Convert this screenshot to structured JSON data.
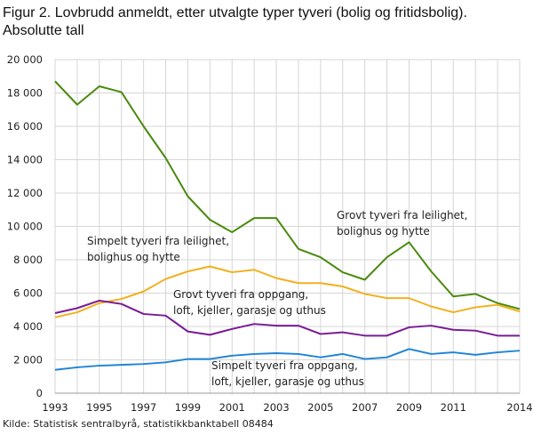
{
  "title_line1": "Figur 2. Lovbrudd anmeldt, etter utvalgte typer tyveri (bolig og fritidsbolig).",
  "title_line2": "Absolutte tall",
  "source": "Kilde: Statistisk sentralbyrå, statistikkbanktabell 08484",
  "chart_data": {
    "type": "line",
    "title": "Figur 2. Lovbrudd anmeldt, etter utvalgte typer tyveri (bolig og fritidsbolig). Absolutte tall",
    "xlabel": "",
    "ylabel": "",
    "x": [
      1993,
      1994,
      1995,
      1996,
      1997,
      1998,
      1999,
      2000,
      2001,
      2002,
      2003,
      2004,
      2005,
      2006,
      2007,
      2008,
      2009,
      2010,
      2011,
      2012,
      2013,
      2014
    ],
    "xtick_labels": [
      "1993",
      "1995",
      "1997",
      "1999",
      "2001",
      "2003",
      "2005",
      "2007",
      "2009",
      "2011",
      "2014"
    ],
    "xtick_values": [
      1993,
      1995,
      1997,
      1999,
      2001,
      2003,
      2005,
      2007,
      2009,
      2011,
      2014
    ],
    "ytick_labels": [
      "0",
      "2 000",
      "4 000",
      "6 000",
      "8 000",
      "10 000",
      "12 000",
      "14 000",
      "16 000",
      "18 000",
      "20 000"
    ],
    "ytick_values": [
      0,
      2000,
      4000,
      6000,
      8000,
      10000,
      12000,
      14000,
      16000,
      18000,
      20000
    ],
    "ylim": [
      0,
      20000
    ],
    "grid": true,
    "series": [
      {
        "name": "Grovt tyveri fra leilighet, bolighus og hytte",
        "label_lines": [
          "Grovt tyveri fra leilighet,",
          "bolighus og hytte"
        ],
        "color": "#4a8a0e",
        "values": [
          18700,
          17300,
          18400,
          18050,
          16000,
          14100,
          11800,
          10400,
          9650,
          10500,
          10500,
          8650,
          8150,
          7250,
          6800,
          8150,
          9050,
          7300,
          5800,
          5950,
          5400,
          5050
        ]
      },
      {
        "name": "Simpelt tyveri fra leilighet, bolighus og hytte",
        "label_lines": [
          "Simpelt tyveri fra leilighet,",
          "bolighus og hytte"
        ],
        "color": "#f2b01e",
        "values": [
          4550,
          4850,
          5400,
          5650,
          6100,
          6850,
          7300,
          7600,
          7250,
          7400,
          6900,
          6600,
          6600,
          6400,
          5950,
          5700,
          5700,
          5200,
          4850,
          5150,
          5300,
          4900
        ]
      },
      {
        "name": "Grovt tyveri fra oppgang, loft, kjeller, garasje og uthus",
        "label_lines": [
          "Grovt tyveri fra oppgang,",
          "loft, kjeller,  garasje  og uthus"
        ],
        "color": "#7a1a96",
        "values": [
          4800,
          5100,
          5550,
          5350,
          4750,
          4650,
          3700,
          3500,
          3850,
          4150,
          4050,
          4050,
          3550,
          3650,
          3450,
          3450,
          3950,
          4050,
          3800,
          3750,
          3450,
          3450
        ]
      },
      {
        "name": "Simpelt tyveri fra oppgang, loft, kjeller, garasje og uthus",
        "label_lines": [
          "Simpelt tyveri fra oppgang,",
          "loft, kjeller,  garasje  og uthus"
        ],
        "color": "#1f84d6",
        "values": [
          1400,
          1550,
          1650,
          1700,
          1750,
          1850,
          2050,
          2050,
          2250,
          2350,
          2400,
          2350,
          2150,
          2350,
          2050,
          2150,
          2650,
          2350,
          2450,
          2300,
          2450,
          2550
        ]
      }
    ]
  }
}
